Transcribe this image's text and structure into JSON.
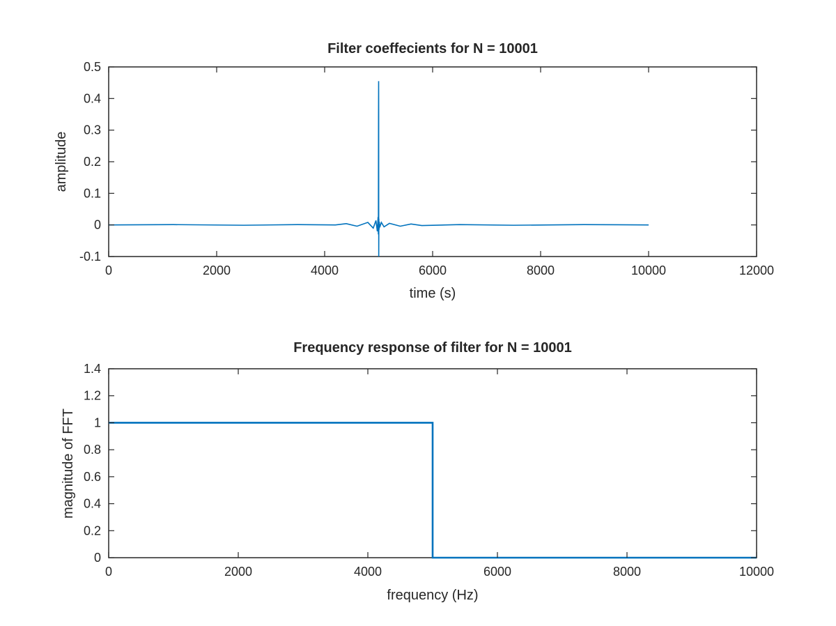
{
  "chart_data": [
    {
      "type": "line",
      "title": "Filter coeffecients for N = 10001",
      "xlabel": "time (s)",
      "ylabel": "amplitude",
      "xlim": [
        0,
        12000
      ],
      "ylim": [
        -0.1,
        0.5
      ],
      "xticks": [
        0,
        2000,
        4000,
        6000,
        8000,
        10000,
        12000
      ],
      "yticks": [
        -0.1,
        0,
        0.1,
        0.2,
        0.3,
        0.4,
        0.5
      ],
      "xtick_labels": [
        "0",
        "2000",
        "4000",
        "6000",
        "8000",
        "10000",
        "12000"
      ],
      "ytick_labels": [
        "-0.1",
        "0",
        "0.1",
        "0.2",
        "0.3",
        "0.4",
        "0.5"
      ],
      "grid": false,
      "series_color": "#0072bd",
      "series": [
        {
          "x": [
            1,
            1200,
            2500,
            3500,
            4200,
            4400,
            4600,
            4800,
            4900,
            4950,
            4975,
            4990,
            4995,
            4998,
            5000,
            5001,
            5002,
            5004,
            5008,
            5012,
            5020,
            5050,
            5100,
            5200,
            5400,
            5600,
            5800,
            6500,
            7500,
            8800,
            10001
          ],
          "y": [
            0,
            0.001,
            -0.001,
            0.001,
            0,
            0.004,
            -0.004,
            0.008,
            -0.01,
            0.014,
            -0.02,
            0.025,
            -0.03,
            0.35,
            0.455,
            0.35,
            -0.1,
            0.02,
            -0.015,
            0.01,
            -0.008,
            0.008,
            -0.006,
            0.005,
            -0.004,
            0.003,
            -0.002,
            0.001,
            -0.001,
            0.001,
            0
          ]
        }
      ]
    },
    {
      "type": "line",
      "title": "Frequency response of filter for N = 10001",
      "xlabel": "frequency (Hz)",
      "ylabel": "magnitude of FFT",
      "xlim": [
        0,
        10000
      ],
      "ylim": [
        0,
        1.4
      ],
      "xticks": [
        0,
        2000,
        4000,
        6000,
        8000,
        10000
      ],
      "yticks": [
        0,
        0.2,
        0.4,
        0.6,
        0.8,
        1,
        1.2,
        1.4
      ],
      "xtick_labels": [
        "0",
        "2000",
        "4000",
        "6000",
        "8000",
        "10000"
      ],
      "ytick_labels": [
        "0",
        "0.2",
        "0.4",
        "0.6",
        "0.8",
        "1",
        "1.2",
        "1.4"
      ],
      "grid": false,
      "series_color": "#0072bd",
      "series": [
        {
          "x": [
            0,
            5000,
            5000,
            10000
          ],
          "y": [
            1,
            1,
            0,
            0
          ]
        }
      ]
    }
  ]
}
